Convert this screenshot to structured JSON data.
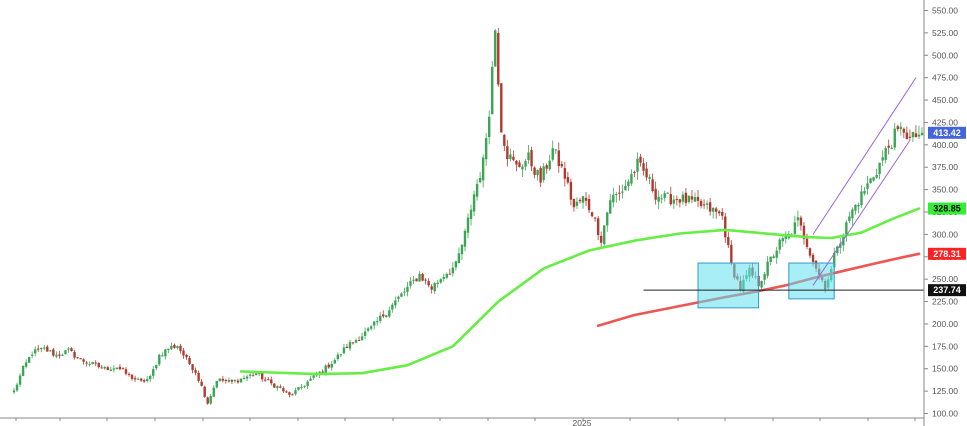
{
  "chart_data": {
    "type": "candlestick",
    "title": "",
    "xlabel": "",
    "ylabel": "",
    "ylim": [
      95,
      555
    ],
    "y_ticks": [
      100,
      125,
      150,
      175,
      200,
      225,
      250,
      275,
      300,
      325,
      350,
      375,
      400,
      425,
      450,
      475,
      500,
      525,
      550
    ],
    "y_tick_labels": [
      "100.00",
      "125.00",
      "150.00",
      "175.00",
      "200.00",
      "225.00",
      "250.00",
      "275.00",
      "300.00",
      "325.00",
      "350.00",
      "375.00",
      "400.00",
      "425.00",
      "450.00",
      "475.00",
      "500.00",
      "525.00",
      "550.00"
    ],
    "x_label_visible": "2025",
    "grid": false,
    "colors": {
      "up": "#3aa655",
      "down": "#b03a2e",
      "ma_fast": "#66ee44",
      "ma_slow": "#ee5555",
      "highlight_fill": "#5ee0f0",
      "highlight_stroke": "#3399cc",
      "channel": "#9966dd",
      "support_line": "#222222"
    },
    "price_labels": [
      {
        "value": 413.42,
        "text": "413.42",
        "bg": "#4466dd",
        "fg": "#ffffff"
      },
      {
        "value": 328.85,
        "text": "328.85",
        "bg": "#33ee33",
        "fg": "#000000"
      },
      {
        "value": 278.31,
        "text": "278.31",
        "bg": "#ff2222",
        "fg": "#ffffff"
      },
      {
        "value": 237.74,
        "text": "237.74",
        "bg": "#111111",
        "fg": "#ffffff"
      }
    ],
    "anchors": [
      [
        0,
        125
      ],
      [
        3,
        150
      ],
      [
        6,
        168
      ],
      [
        10,
        172
      ],
      [
        14,
        165
      ],
      [
        18,
        170
      ],
      [
        22,
        160
      ],
      [
        26,
        155
      ],
      [
        30,
        150
      ],
      [
        34,
        152
      ],
      [
        38,
        142
      ],
      [
        42,
        135
      ],
      [
        45,
        140
      ],
      [
        48,
        165
      ],
      [
        51,
        173
      ],
      [
        54,
        176
      ],
      [
        57,
        160
      ],
      [
        60,
        147
      ],
      [
        62,
        130
      ],
      [
        64,
        112
      ],
      [
        67,
        138
      ],
      [
        72,
        135
      ],
      [
        76,
        140
      ],
      [
        80,
        145
      ],
      [
        84,
        135
      ],
      [
        88,
        128
      ],
      [
        91,
        120
      ],
      [
        94,
        127
      ],
      [
        98,
        138
      ],
      [
        102,
        148
      ],
      [
        106,
        160
      ],
      [
        110,
        175
      ],
      [
        114,
        185
      ],
      [
        118,
        195
      ],
      [
        122,
        210
      ],
      [
        126,
        225
      ],
      [
        130,
        240
      ],
      [
        134,
        255
      ],
      [
        138,
        240
      ],
      [
        142,
        255
      ],
      [
        146,
        265
      ],
      [
        149,
        300
      ],
      [
        152,
        345
      ],
      [
        155,
        380
      ],
      [
        157,
        440
      ],
      [
        159,
        530
      ],
      [
        161,
        420
      ],
      [
        163,
        390
      ],
      [
        166,
        375
      ],
      [
        170,
        385
      ],
      [
        174,
        360
      ],
      [
        178,
        395
      ],
      [
        182,
        365
      ],
      [
        185,
        330
      ],
      [
        188,
        340
      ],
      [
        191,
        325
      ],
      [
        194,
        295
      ],
      [
        197,
        340
      ],
      [
        200,
        345
      ],
      [
        203,
        360
      ],
      [
        206,
        378
      ],
      [
        209,
        365
      ],
      [
        212,
        345
      ],
      [
        215,
        340
      ],
      [
        220,
        340
      ],
      [
        225,
        335
      ],
      [
        230,
        328
      ],
      [
        234,
        320
      ],
      [
        237,
        265
      ],
      [
        240,
        240
      ],
      [
        243,
        258
      ],
      [
        246,
        245
      ],
      [
        250,
        272
      ],
      [
        253,
        290
      ],
      [
        256,
        298
      ],
      [
        259,
        315
      ],
      [
        262,
        290
      ],
      [
        264,
        272
      ],
      [
        266,
        255
      ],
      [
        268,
        243
      ],
      [
        270,
        260
      ],
      [
        272,
        290
      ],
      [
        274,
        300
      ],
      [
        276,
        320
      ],
      [
        279,
        338
      ],
      [
        282,
        355
      ],
      [
        285,
        372
      ],
      [
        288,
        392
      ],
      [
        291,
        410
      ],
      [
        294,
        418
      ],
      [
        296,
        405
      ],
      [
        298,
        410
      ],
      [
        300,
        413.42
      ]
    ],
    "candle_count": 301,
    "ma_fast_points": [
      [
        75,
        147
      ],
      [
        100,
        144
      ],
      [
        115,
        145
      ],
      [
        130,
        154
      ],
      [
        145,
        175
      ],
      [
        160,
        225
      ],
      [
        175,
        262
      ],
      [
        190,
        282
      ],
      [
        205,
        293
      ],
      [
        220,
        301
      ],
      [
        235,
        305
      ],
      [
        245,
        302
      ],
      [
        255,
        299
      ],
      [
        262,
        297
      ],
      [
        270,
        296
      ],
      [
        280,
        302
      ],
      [
        290,
        317
      ],
      [
        299,
        328.85
      ]
    ],
    "ma_slow_points": [
      [
        193,
        198
      ],
      [
        205,
        210
      ],
      [
        220,
        220
      ],
      [
        235,
        230
      ],
      [
        245,
        236
      ],
      [
        255,
        243
      ],
      [
        265,
        252
      ],
      [
        275,
        260
      ],
      [
        285,
        268
      ],
      [
        293,
        274
      ],
      [
        299,
        278.31
      ]
    ],
    "support_line": {
      "x_start": 208,
      "x_end": 304,
      "y": 237.74
    },
    "highlight_boxes": [
      {
        "x1": 226,
        "x2": 246,
        "y1": 218,
        "y2": 268
      },
      {
        "x1": 256,
        "x2": 271,
        "y1": 228,
        "y2": 268
      }
    ],
    "channel_lines": [
      {
        "x1": 264,
        "y1": 243,
        "x2": 296,
        "y2": 405
      },
      {
        "x1": 264,
        "y1": 300,
        "x2": 298,
        "y2": 475
      }
    ]
  }
}
